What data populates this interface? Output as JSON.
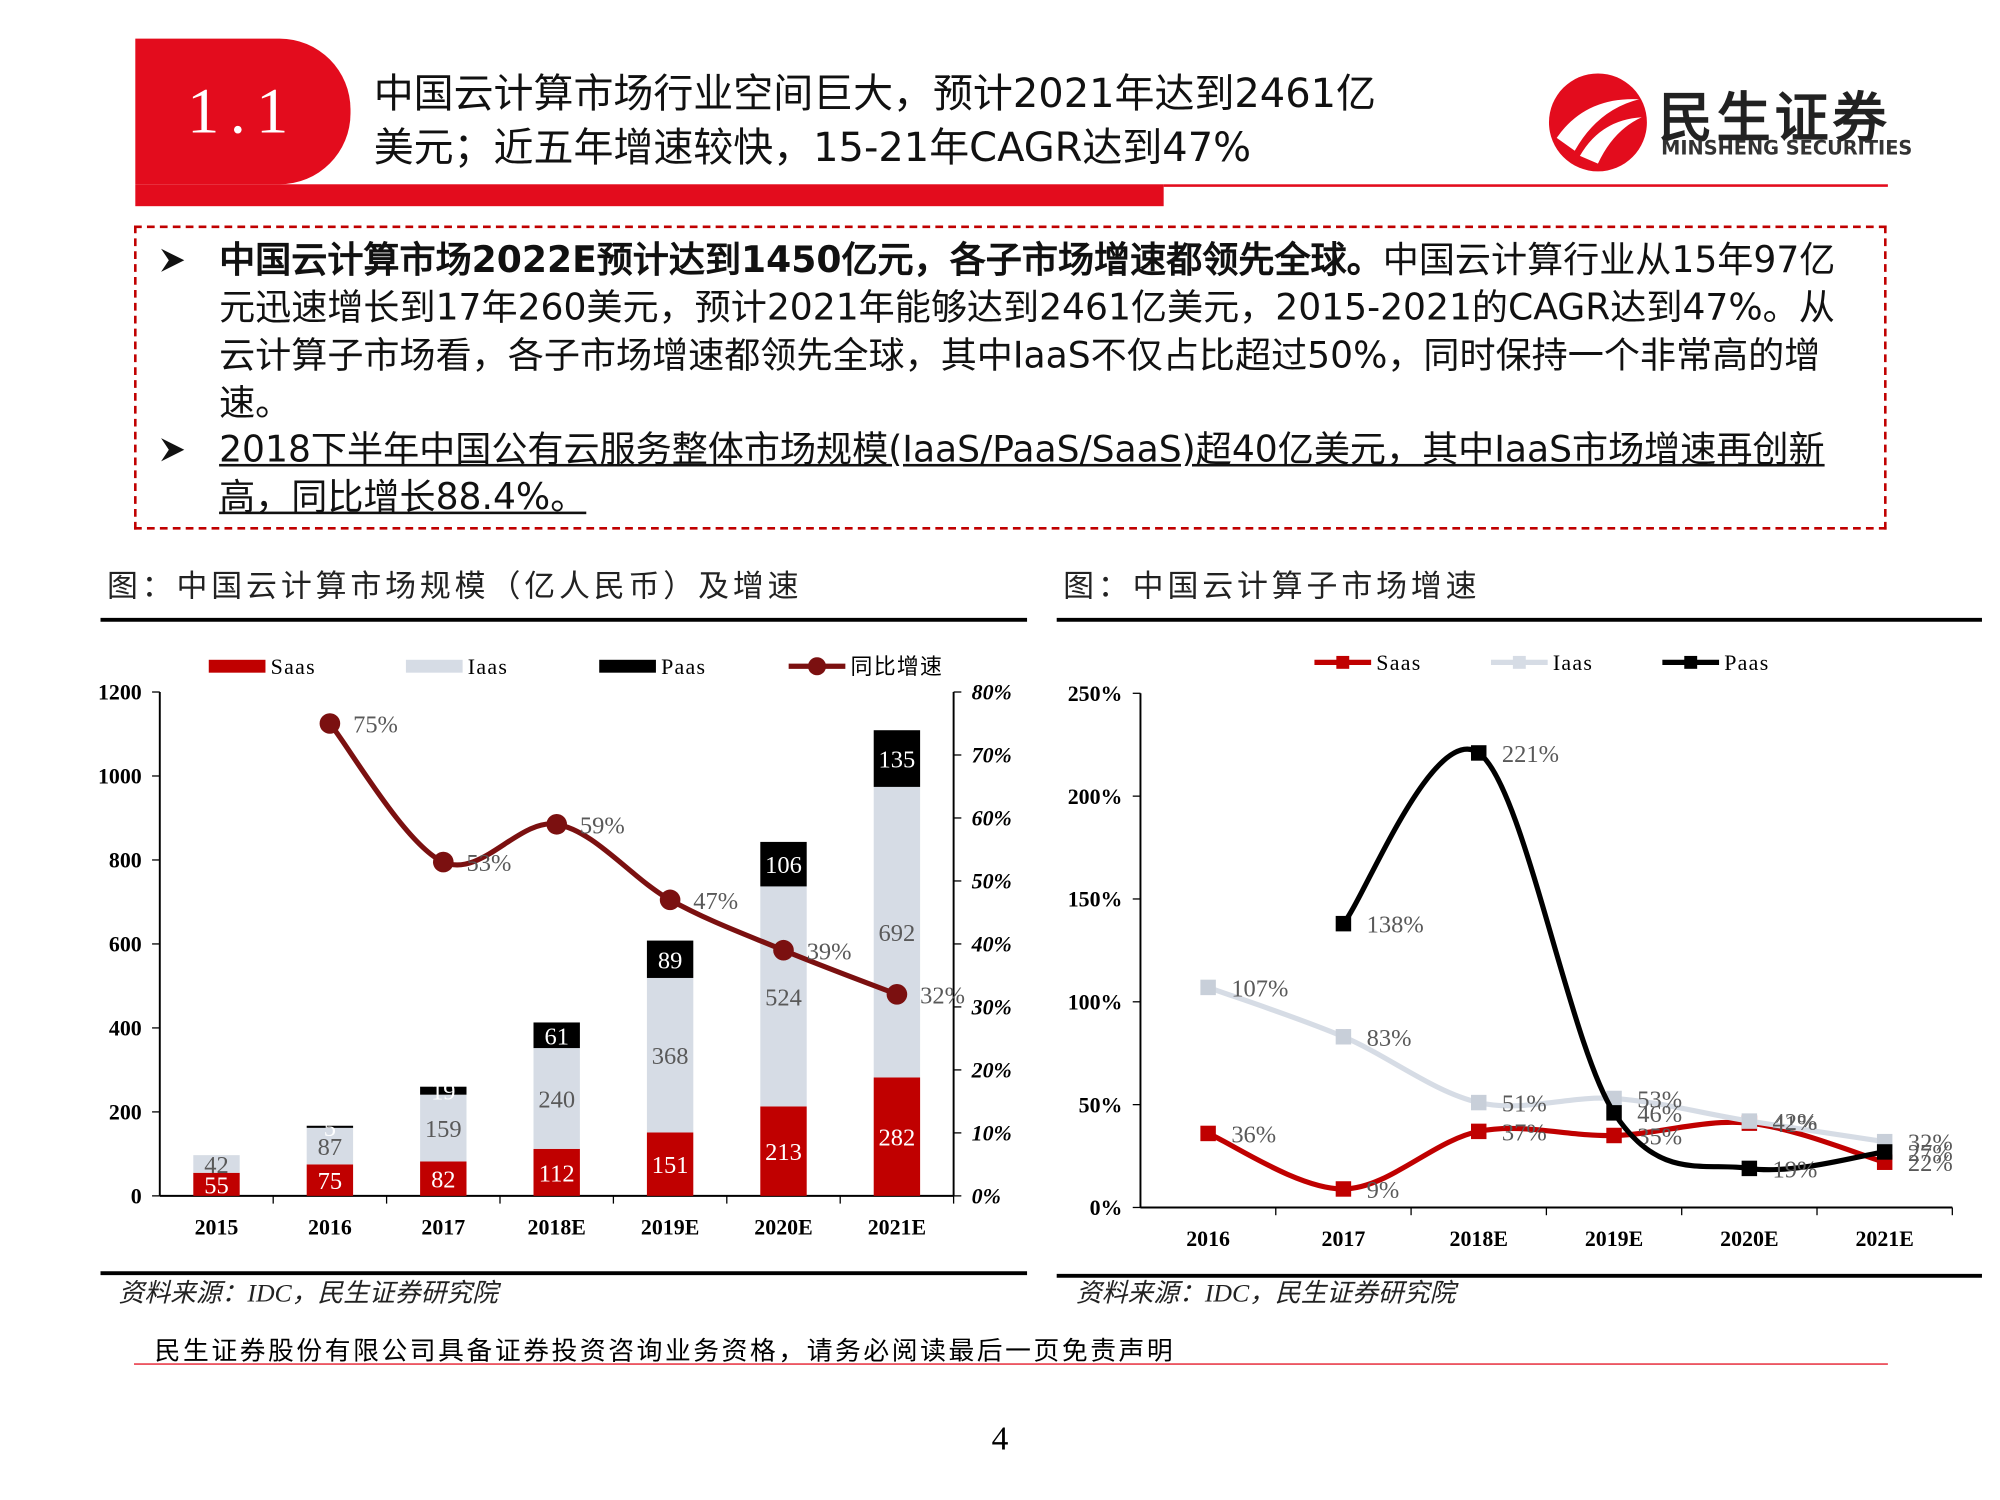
{
  "header": {
    "number": "1.1",
    "title_line1": "中国云计算市场行业空间巨大，预计2021年达到2461亿",
    "title_line2": "美元；近五年增速较快，15-21年CAGR达到47%",
    "logo_cn": "民生证券",
    "logo_en": "MINSHENG SECURITIES"
  },
  "bullets": [
    {
      "bold": "中国云计算市场2022E预计达到1450亿元，各子市场增速都领先全球。",
      "text": "中国云计算行业从15年97亿元迅速增长到17年260美元，预计2021年能够达到2461亿美元，2015-2021的CAGR达到47%。从云计算子市场看，各子市场增速都领先全球，其中IaaS不仅占比超过50%，同时保持一个非常高的增速。"
    },
    {
      "underlined": "2018下半年中国公有云服务整体市场规模(IaaS/PaaS/SaaS)超40亿美元，其中IaaS市场增速再创新高，同比增长88.4%。"
    }
  ],
  "chart_data": [
    {
      "type": "bar",
      "stacked": true,
      "title": "图：中国云计算市场规模（亿人民币）及增速",
      "source": "资料来源：IDC，民生证券研究院",
      "categories": [
        "2015",
        "2016",
        "2017",
        "2018E",
        "2019E",
        "2020E",
        "2021E"
      ],
      "series": [
        {
          "name": "Saas",
          "color": "#c00000",
          "values": [
            55,
            75,
            82,
            112,
            151,
            213,
            282
          ]
        },
        {
          "name": "Iaas",
          "color": "#d6dce5",
          "values": [
            42,
            87,
            159,
            240,
            368,
            524,
            692
          ]
        },
        {
          "name": "Paas",
          "color": "#000000",
          "values": [
            null,
            5,
            19,
            61,
            89,
            106,
            135
          ]
        },
        {
          "name": "同比增速",
          "type": "line",
          "axis": "y2",
          "color": "#7b1010",
          "values": [
            null,
            75,
            53,
            59,
            47,
            39,
            32
          ],
          "value_labels": [
            null,
            "75%",
            "53%",
            "59%",
            "47%",
            "39%",
            "32%"
          ]
        }
      ],
      "ylim": [
        0,
        1200
      ],
      "yticks": [
        0,
        200,
        400,
        600,
        800,
        1000,
        1200
      ],
      "y2lim": [
        0,
        80
      ],
      "y2ticks": [
        {
          "value": 0,
          "label": "0%"
        },
        {
          "value": 10,
          "label": "10%"
        },
        {
          "value": 20,
          "label": "20%"
        },
        {
          "value": 30,
          "label": "30%"
        },
        {
          "value": 40,
          "label": "40%"
        },
        {
          "value": 50,
          "label": "50%"
        },
        {
          "value": 60,
          "label": "60%"
        },
        {
          "value": 70,
          "label": "70%"
        },
        {
          "value": 80,
          "label": "80%"
        }
      ]
    },
    {
      "type": "line",
      "title": "图：中国云计算子市场增速",
      "source": "资料来源：IDC，民生证券研究院",
      "categories": [
        "2016",
        "2017",
        "2018E",
        "2019E",
        "2020E",
        "2021E"
      ],
      "series": [
        {
          "name": "Saas",
          "color": "#c00000",
          "values": [
            36,
            9,
            37,
            35,
            41,
            22
          ],
          "value_labels": [
            "36%",
            "9%",
            "37%",
            "35%",
            "41%",
            "22%"
          ]
        },
        {
          "name": "Iaas",
          "color": "#d6dce5",
          "values": [
            107,
            83,
            51,
            53,
            42,
            32
          ],
          "value_labels": [
            "107%",
            "83%",
            "51%",
            "53%",
            "42%",
            "32%"
          ]
        },
        {
          "name": "Paas",
          "color": "#000000",
          "values": [
            null,
            138,
            221,
            46,
            19,
            27
          ],
          "value_labels": [
            null,
            "138%",
            "221%",
            "46%",
            "19%",
            "27%"
          ]
        }
      ],
      "ylim": [
        0,
        250
      ],
      "yticks": [
        {
          "value": 0,
          "label": "0%"
        },
        {
          "value": 50,
          "label": "50%"
        },
        {
          "value": 100,
          "label": "100%"
        },
        {
          "value": 150,
          "label": "150%"
        },
        {
          "value": 200,
          "label": "200%"
        },
        {
          "value": 250,
          "label": "250%"
        }
      ]
    }
  ],
  "footer": {
    "disclaimer": "民生证券股份有限公司具备证券投资咨询业务资格，请务必阅读最后一页免责声明",
    "page": "4"
  }
}
